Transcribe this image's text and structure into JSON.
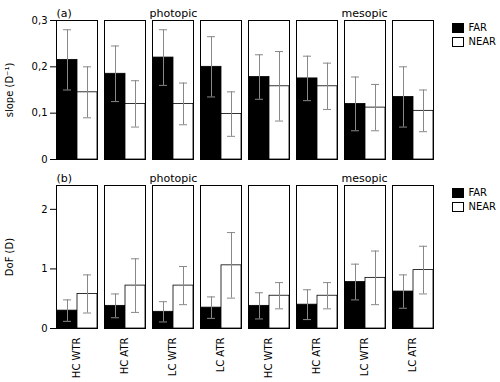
{
  "chart_data": [
    {
      "type": "bar",
      "title": "(a)",
      "annotations": [
        "photopic",
        "mesopic"
      ],
      "categories": [
        "HC WTR",
        "HC ATR",
        "LC WTR",
        "LC ATR",
        "HC WTR",
        "HC ATR",
        "LC WTR",
        "LC ATR"
      ],
      "ylabel": "slope (D⁻¹)",
      "ylim": [
        0,
        0.3
      ],
      "yticks": [
        0,
        {
          "value": 0.1,
          "label": "0,1"
        },
        {
          "value": 0.2,
          "label": "0,2"
        },
        {
          "value": 0.3,
          "label": "0,3"
        }
      ],
      "series": [
        {
          "name": "FAR",
          "color": "#000000",
          "values": [
            0.215,
            0.185,
            0.22,
            0.2,
            0.178,
            0.175,
            0.12,
            0.135
          ],
          "errors": [
            0.065,
            0.06,
            0.06,
            0.065,
            0.048,
            0.048,
            0.058,
            0.065
          ]
        },
        {
          "name": "NEAR",
          "color": "#ffffff",
          "values": [
            0.145,
            0.12,
            0.12,
            0.098,
            0.158,
            0.158,
            0.112,
            0.105
          ],
          "errors": [
            0.055,
            0.05,
            0.045,
            0.048,
            0.075,
            0.05,
            0.05,
            0.045
          ]
        }
      ],
      "legend": "upper right",
      "tick_labels": "y"
    },
    {
      "type": "bar",
      "title": "(b)",
      "annotations": [
        "photopic",
        "mesopic"
      ],
      "categories": [
        "HC WTR",
        "HC ATR",
        "LC WTR",
        "LC ATR",
        "HC WTR",
        "HC ATR",
        "LC WTR",
        "LC ATR"
      ],
      "ylabel": "DoF (D)",
      "ylim": [
        0,
        2.4
      ],
      "yticks": [
        0,
        1,
        2
      ],
      "series": [
        {
          "name": "FAR",
          "color": "#000000",
          "values": [
            0.3,
            0.38,
            0.28,
            0.35,
            0.38,
            0.4,
            0.78,
            0.62
          ],
          "errors": [
            0.18,
            0.2,
            0.17,
            0.18,
            0.22,
            0.25,
            0.3,
            0.28
          ]
        },
        {
          "name": "NEAR",
          "color": "#ffffff",
          "values": [
            0.58,
            0.72,
            0.72,
            1.06,
            0.55,
            0.55,
            0.85,
            0.98
          ],
          "errors": [
            0.32,
            0.45,
            0.32,
            0.55,
            0.22,
            0.22,
            0.45,
            0.4
          ]
        }
      ],
      "legend": "upper right"
    }
  ]
}
